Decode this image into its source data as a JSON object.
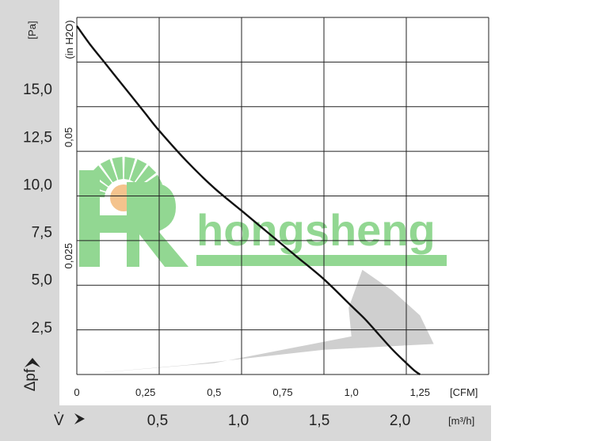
{
  "chart_data": {
    "type": "line",
    "y_axis_label": "Δpf",
    "y_unit": "[Pa]",
    "y_ticks": [
      "2,5",
      "5,0",
      "7,5",
      "10,0",
      "12,5",
      "15,0"
    ],
    "y_tick_values": [
      2.5,
      5.0,
      7.5,
      10.0,
      12.5,
      15.0
    ],
    "y_secondary_unit": "(in H2O)",
    "y_secondary_ticks": [
      "0,025",
      "0,05"
    ],
    "y_secondary_tick_values": [
      0.025,
      0.05
    ],
    "x_axis_label": "V̇",
    "x_unit": "[CFM]",
    "x_ticks": [
      "0",
      "0,25",
      "0,5",
      "0,75",
      "1,0",
      "1,25"
    ],
    "x_tick_values": [
      0,
      0.25,
      0.5,
      0.75,
      1.0,
      1.25
    ],
    "x_secondary_unit": "[m³/h]",
    "x_secondary_ticks": [
      "0,5",
      "1,0",
      "1,5",
      "2,0"
    ],
    "x_secondary_tick_values": [
      0.5,
      1.0,
      1.5,
      2.0
    ],
    "xlim": [
      0,
      1.5
    ],
    "ylim": [
      0,
      18.75
    ],
    "grid": true,
    "series": [
      {
        "x": [
          0,
          0.05,
          0.1,
          0.15,
          0.2,
          0.25,
          0.3,
          0.4,
          0.5,
          0.6,
          0.7,
          0.8,
          0.9,
          1.0,
          1.05,
          1.1,
          1.15,
          1.2,
          1.23,
          1.25
        ],
        "y": [
          18.3,
          17.3,
          16.4,
          15.5,
          14.6,
          13.7,
          12.8,
          11.2,
          9.8,
          8.6,
          7.4,
          6.2,
          5.0,
          3.6,
          2.9,
          2.1,
          1.3,
          0.6,
          0.2,
          0
        ]
      }
    ],
    "operating_range": {
      "color": "#cfcfcf",
      "x": [
        0,
        0.5,
        1.0,
        0.99,
        1.04,
        1.15,
        1.25,
        1.3,
        0.9,
        0.4,
        0
      ],
      "y": [
        0,
        0.6,
        2.0,
        3.5,
        5.5,
        4.4,
        3.1,
        1.6,
        1.3,
        0.5,
        0
      ]
    },
    "axis_band_color": "#d8d8d8",
    "curve_color": "#111111"
  },
  "watermark": {
    "text": "hongsheng",
    "color": "#7fd17f",
    "sun_color": "#f3b97a"
  }
}
